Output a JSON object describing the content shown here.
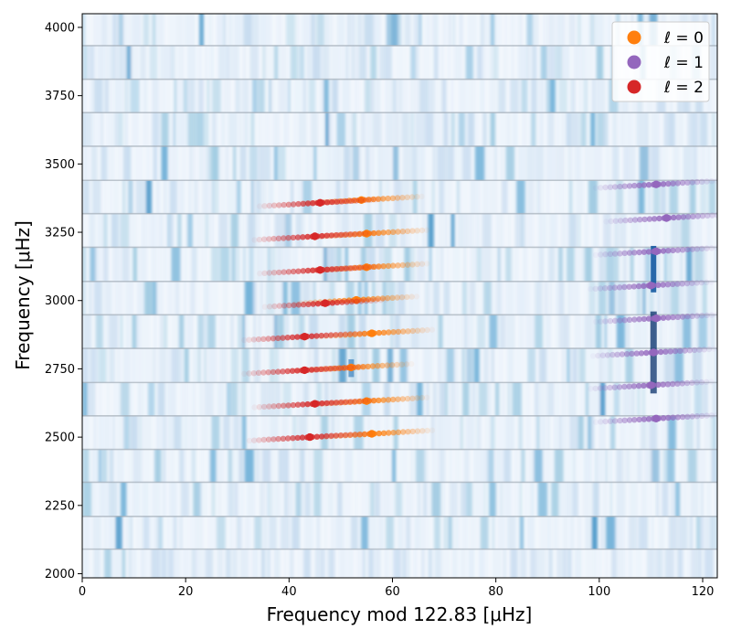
{
  "chart_data": {
    "type": "scatter",
    "subtype": "echelle-diagram",
    "xlabel": "Frequency mod 122.83 [μHz]",
    "ylabel": "Frequency [μHz]",
    "xlim": [
      0,
      122.83
    ],
    "ylim": [
      1985,
      4050
    ],
    "xticks": [
      0,
      20,
      40,
      60,
      80,
      100,
      120
    ],
    "yticks": [
      2000,
      2250,
      2500,
      2750,
      3000,
      3250,
      3500,
      3750,
      4000
    ],
    "background": "power-spectrum-heatmap",
    "grid": false,
    "legend_position": "top-right",
    "row_boundaries": [
      2090,
      2210,
      2335,
      2455,
      2578,
      2700,
      2825,
      2948,
      3070,
      3195,
      3318,
      3440,
      3565,
      3688,
      3810,
      3933
    ],
    "series": [
      {
        "name": "ℓ = 0",
        "color": "#ff7f0e",
        "points": [
          {
            "x": 56,
            "y": 2512
          },
          {
            "x": 55,
            "y": 2632
          },
          {
            "x": 52,
            "y": 2755
          },
          {
            "x": 56,
            "y": 2880
          },
          {
            "x": 53,
            "y": 3002
          },
          {
            "x": 55,
            "y": 3122
          },
          {
            "x": 55,
            "y": 3245
          },
          {
            "x": 54,
            "y": 3368
          }
        ]
      },
      {
        "name": "ℓ = 1",
        "color": "#9467bd",
        "points": [
          {
            "x": 111,
            "y": 2568
          },
          {
            "x": 110,
            "y": 2690
          },
          {
            "x": 110.5,
            "y": 2810
          },
          {
            "x": 111,
            "y": 2935
          },
          {
            "x": 110,
            "y": 3055
          },
          {
            "x": 111,
            "y": 3180
          },
          {
            "x": 113,
            "y": 3302
          },
          {
            "x": 111,
            "y": 3425
          }
        ]
      },
      {
        "name": "ℓ = 2",
        "color": "#d62728",
        "points": [
          {
            "x": 44,
            "y": 2500
          },
          {
            "x": 45,
            "y": 2622
          },
          {
            "x": 43,
            "y": 2745
          },
          {
            "x": 43,
            "y": 2868
          },
          {
            "x": 47,
            "y": 2990
          },
          {
            "x": 46,
            "y": 3112
          },
          {
            "x": 45,
            "y": 3235
          },
          {
            "x": 46,
            "y": 3358
          }
        ]
      }
    ]
  }
}
